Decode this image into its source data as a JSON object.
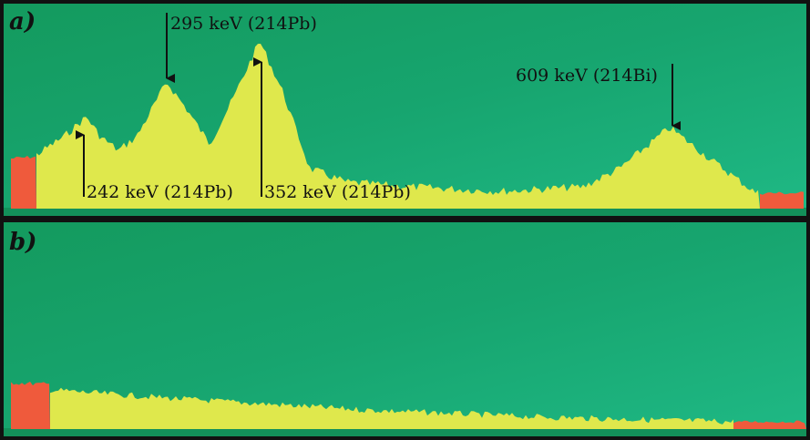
{
  "panels": [
    {
      "label": "a)",
      "annotations": [
        "295 keV (214Pb)",
        "242 keV (214Pb)",
        "352 keV (214Pb)",
        "609 keV (214Bi)"
      ]
    },
    {
      "label": "b)"
    }
  ]
}
